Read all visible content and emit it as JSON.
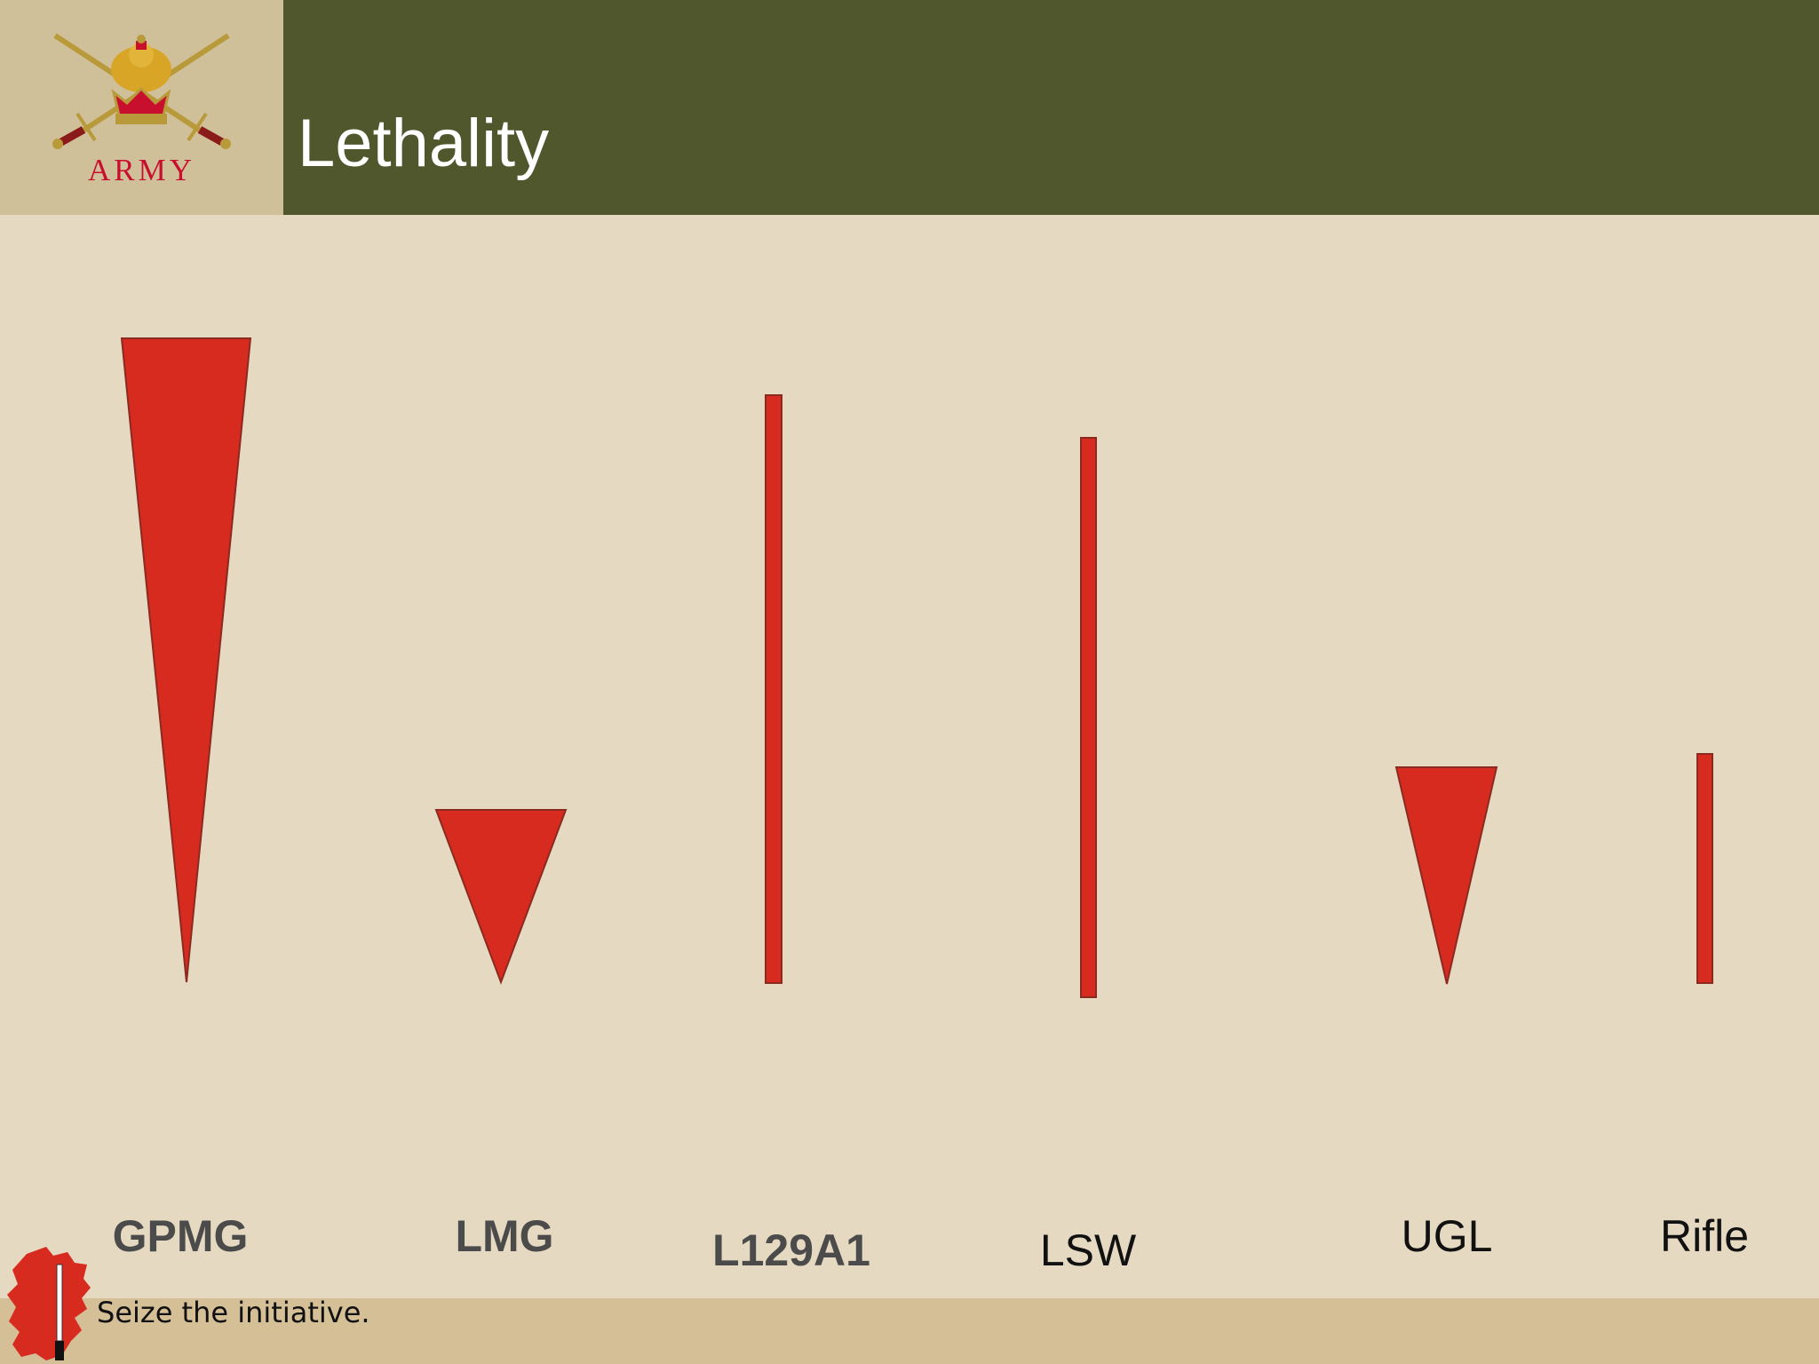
{
  "header": {
    "logo_text": "ARMY",
    "title": "Lethality",
    "band_color": "#51572c",
    "logo_bg_color": "#d0c09a"
  },
  "weapons": [
    {
      "label": "GPMG",
      "shape": "wedge"
    },
    {
      "label": "LMG",
      "shape": "wedge"
    },
    {
      "label": "L129A1",
      "shape": "bar"
    },
    {
      "label": "LSW",
      "shape": "bar"
    },
    {
      "label": "UGL",
      "shape": "wedge"
    },
    {
      "label": "Rifle",
      "shape": "bar"
    }
  ],
  "shape_color": "#d72b1f",
  "footer": {
    "tagline": "Seize the initiative.",
    "band_color": "#d4bf96"
  }
}
